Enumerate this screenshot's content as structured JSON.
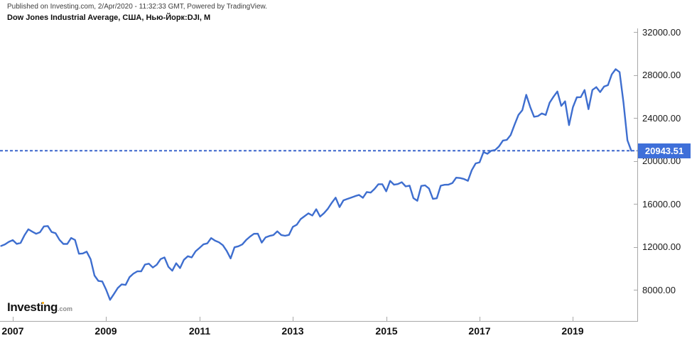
{
  "header": {
    "published_line": "Published on Investing.com, 2/Apr/2020 - 11:32:33 GMT, Powered by TradingView.",
    "instrument_line": "Dow Jones Industrial Average, США, Нью-Йорк:DJI, М"
  },
  "logo": {
    "name": "Investing",
    "suffix": ".com"
  },
  "price_marker": {
    "value_label": "20943.51"
  },
  "colors": {
    "line": "#3e6ecf",
    "dashed_line": "#3c66cc",
    "price_flag_bg": "#3e6fd9",
    "axis": "#a8a8a8"
  },
  "chart_data": {
    "type": "line",
    "title": "Dow Jones Industrial Average, США, Нью-Йорк:DJI, М",
    "timeframe": "Monthly",
    "legend_position": "none",
    "grid": false,
    "current_price": 20943.51,
    "y_ticks": [
      {
        "label": "32000.00",
        "value": 32000
      },
      {
        "label": "28000.00",
        "value": 28000
      },
      {
        "label": "24000.00",
        "value": 24000
      },
      {
        "label": "20000.00",
        "value": 20000
      },
      {
        "label": "16000.00",
        "value": 16000
      },
      {
        "label": "12000.00",
        "value": 12000
      },
      {
        "label": "8000.00",
        "value": 8000
      }
    ],
    "x_ticks": [
      {
        "label": "2007",
        "value": 2007
      },
      {
        "label": "2009",
        "value": 2009
      },
      {
        "label": "2011",
        "value": 2011
      },
      {
        "label": "2013",
        "value": 2013
      },
      {
        "label": "2015",
        "value": 2015
      },
      {
        "label": "2017",
        "value": 2017
      },
      {
        "label": "2019",
        "value": 2019
      }
    ],
    "x_domain": [
      2006.75,
      2020.42
    ],
    "y_domain": [
      6700,
      32300
    ],
    "start_year": 2006,
    "start_month": 10,
    "values": [
      12080,
      12222,
      12463,
      12622,
      12269,
      12354,
      13063,
      13628,
      13409,
      13212,
      13358,
      13896,
      13930,
      13372,
      13265,
      12650,
      12266,
      12263,
      12820,
      12638,
      11350,
      11378,
      11544,
      10851,
      9325,
      8829,
      8776,
      8001,
      7063,
      7609,
      8168,
      8500,
      8447,
      9172,
      9496,
      9712,
      9713,
      10345,
      10428,
      10067,
      10325,
      10857,
      11009,
      10137,
      9774,
      10466,
      10015,
      10788,
      11118,
      11006,
      11578,
      11892,
      12226,
      12320,
      12811,
      12570,
      12414,
      12143,
      11614,
      10913,
      11955,
      12046,
      12218,
      12633,
      12952,
      13212,
      13214,
      12393,
      12880,
      13009,
      13091,
      13437,
      13096,
      13026,
      13104,
      13861,
      14054,
      14579,
      14840,
      15116,
      14910,
      15500,
      14810,
      15130,
      15546,
      16086,
      16577,
      15699,
      16322,
      16458,
      16581,
      16717,
      16827,
      16563,
      17098,
      17043,
      17391,
      17828,
      17823,
      17165,
      18133,
      17776,
      17841,
      18011,
      17620,
      17690,
      16528,
      16285,
      17664,
      17720,
      17425,
      16466,
      16517,
      17685,
      17774,
      17787,
      17930,
      18432,
      18401,
      18308,
      18142,
      19124,
      19763,
      19864,
      20812,
      20663,
      20941,
      21009,
      21350,
      21891,
      21948,
      22405,
      23377,
      24272,
      24719,
      26149,
      25029,
      24103,
      24163,
      24416,
      24271,
      25415,
      25965,
      26458,
      25116,
      25538,
      23327,
      24999,
      25916,
      25929,
      26593,
      24815,
      26600,
      26864,
      26403,
      26917,
      27046,
      28051,
      28538,
      28256,
      25409,
      21917,
      20943.51
    ]
  }
}
